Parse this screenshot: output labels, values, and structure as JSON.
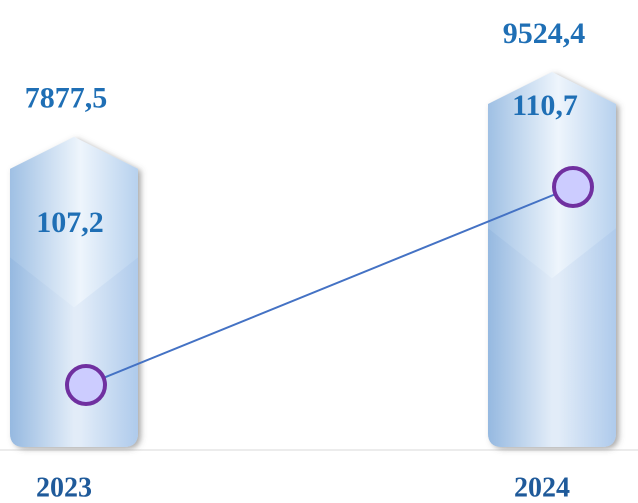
{
  "chart_data": {
    "type": "bar",
    "categories": [
      "2023",
      "2024"
    ],
    "bars": {
      "values": [
        7877.5,
        9524.4
      ],
      "value_labels": [
        "7877,5",
        "9524,4"
      ]
    },
    "line": {
      "values": [
        107.2,
        110.7
      ],
      "value_labels": [
        "107,2",
        "110,7"
      ],
      "color": "#4472c4",
      "marker_fill": "#ccccff",
      "marker_stroke": "#7030a0"
    }
  }
}
